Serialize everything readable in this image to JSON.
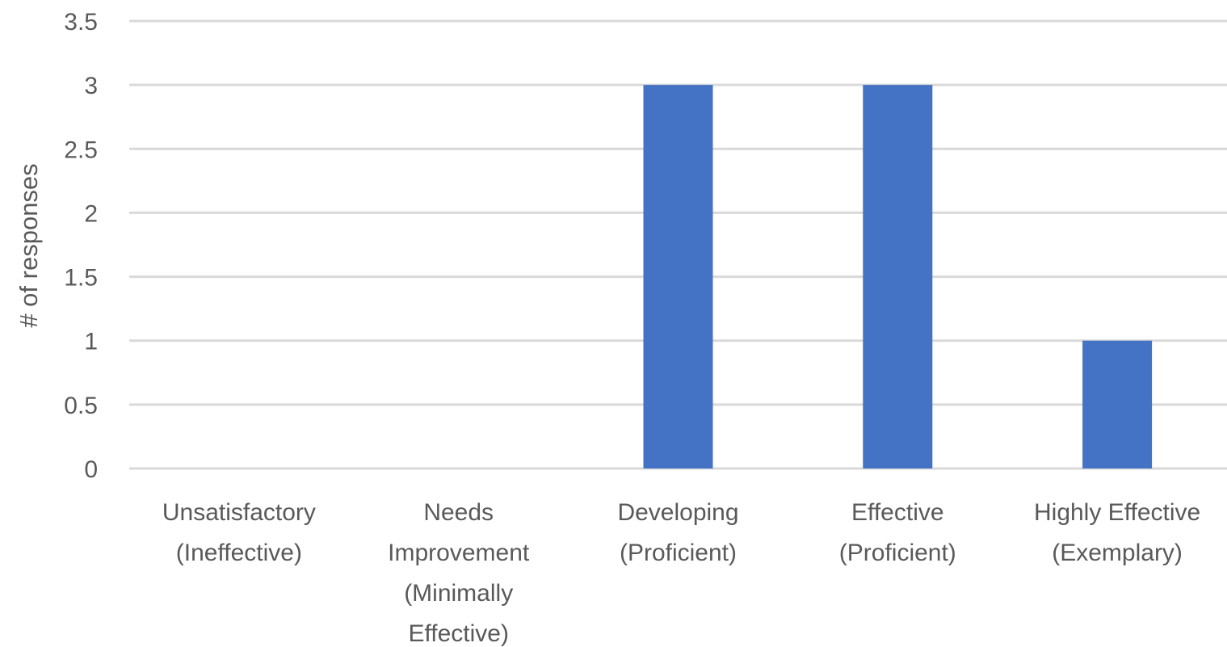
{
  "chart_data": {
    "type": "bar",
    "categories": [
      [
        "Unsatisfactory",
        "(Ineffective)"
      ],
      [
        "Needs",
        "Improvement",
        "(Minimally",
        "Effective)"
      ],
      [
        "Developing",
        "(Proficient)"
      ],
      [
        "Effective",
        "(Proficient)"
      ],
      [
        "Highly Effective",
        "(Exemplary)"
      ]
    ],
    "values": [
      0,
      0,
      3,
      3,
      1
    ],
    "title": "",
    "xlabel": "",
    "ylabel": "# of responses",
    "ylim": [
      0,
      3.5
    ],
    "yticks": [
      "0",
      "0.5",
      "1",
      "1.5",
      "2",
      "2.5",
      "3",
      "3.5"
    ],
    "grid": true,
    "legend": "none",
    "colors": {
      "bar": "#4472C4",
      "grid": "#D9D9D9",
      "text": "#595959"
    }
  }
}
